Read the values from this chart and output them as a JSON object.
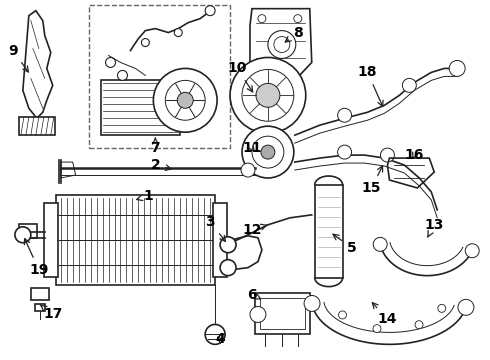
{
  "bg_color": "#ffffff",
  "line_color": "#222222",
  "label_color": "#000000",
  "figsize": [
    4.9,
    3.6
  ],
  "dpi": 100,
  "xlim": [
    0,
    490
  ],
  "ylim": [
    0,
    360
  ]
}
